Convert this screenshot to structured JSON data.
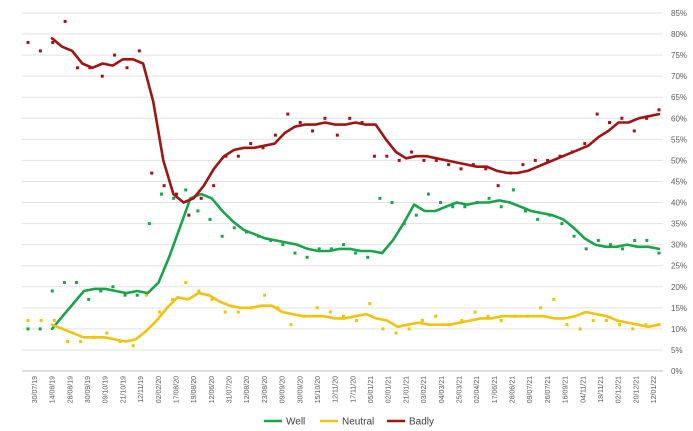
{
  "chart_data": {
    "type": "line",
    "title": "",
    "xlabel": "",
    "ylabel": "",
    "ylim": [
      0,
      85
    ],
    "y_ticks": [
      0,
      5,
      10,
      15,
      20,
      25,
      30,
      35,
      40,
      45,
      50,
      55,
      60,
      65,
      70,
      75,
      80,
      85
    ],
    "y_tick_labels": [
      "0%",
      "5%",
      "10%",
      "15%",
      "20%",
      "25%",
      "30%",
      "35%",
      "40%",
      "45%",
      "50%",
      "55%",
      "60%",
      "65%",
      "70%",
      "75%",
      "80%",
      "85%"
    ],
    "y_axis_position": "right",
    "grid": true,
    "legend_position": "bottom",
    "x_labels": [
      "30/07/19",
      "14/08/19",
      "28/08/19",
      "30/09/19",
      "09/10/19",
      "21/10/19",
      "12/11/19",
      "02/02/20",
      "17/08/20",
      "19/08/20",
      "12/06/20",
      "31/07/20",
      "12/08/20",
      "23/08/20",
      "09/09/20",
      "30/09/20",
      "15/10/20",
      "12/11/20",
      "17/11/20",
      "05/01/21",
      "02/01/21",
      "21/01/21",
      "03/02/21",
      "04/03/21",
      "25/03/21",
      "02/04/21",
      "17/06/21",
      "28/06/21",
      "09/07/21",
      "26/07/21",
      "16/09/21",
      "04/11/21",
      "18/11/21",
      "02/12/21",
      "20/12/21",
      "12/01/22"
    ],
    "series": [
      {
        "name": "Well",
        "color": "#1aa34a",
        "trend": [
          10,
          13,
          16,
          19,
          19.5,
          19.5,
          19,
          18.5,
          19,
          18.5,
          21,
          27,
          34,
          41,
          42,
          41,
          38,
          35.5,
          33.5,
          32.5,
          31.5,
          31,
          30.5,
          30,
          29,
          28.5,
          28.5,
          29,
          29,
          28.5,
          28.5,
          28,
          31,
          35,
          39.5,
          38,
          38,
          39,
          40,
          39.5,
          40,
          40,
          40.5,
          40,
          39,
          38,
          37.5,
          37,
          36,
          34,
          31.5,
          30,
          29.5,
          29.5,
          30,
          29.5,
          29.5,
          29
        ],
        "dots": [
          10,
          10,
          19,
          21,
          21,
          17,
          19,
          20,
          18,
          18,
          35,
          42,
          41,
          43,
          38,
          36,
          32,
          34,
          33,
          32,
          31,
          30,
          28,
          27,
          29,
          29,
          30,
          28,
          27,
          41,
          40,
          35,
          37,
          42,
          40,
          39,
          39,
          40,
          41,
          39,
          43,
          38,
          36,
          37,
          35,
          32,
          29,
          31,
          30,
          29,
          31,
          31,
          28
        ]
      },
      {
        "name": "Neutral",
        "color": "#f2c20c",
        "trend": [
          11,
          10,
          9,
          8,
          8,
          8,
          7.5,
          7,
          7.5,
          9.5,
          12,
          15,
          17.5,
          17,
          18.5,
          18,
          16.5,
          15.5,
          15,
          15,
          15.5,
          15.5,
          14,
          13.5,
          13,
          13,
          13,
          12.5,
          12.5,
          13,
          13.5,
          12.5,
          12,
          10.5,
          11,
          11.5,
          11,
          11,
          11,
          11.5,
          12,
          12.5,
          12.5,
          13,
          13,
          13,
          13,
          13,
          12.5,
          12.5,
          13,
          14,
          13.5,
          13,
          12,
          11.5,
          11,
          10.5,
          11
        ],
        "dots": [
          12,
          12,
          12,
          7,
          7,
          8,
          9,
          7,
          6,
          18,
          14,
          17,
          21,
          19,
          17,
          14,
          14,
          15,
          18,
          15,
          11,
          13,
          15,
          14,
          13,
          12,
          16,
          10,
          9,
          10,
          12,
          13,
          11,
          12,
          14,
          13,
          12,
          13,
          13,
          15,
          17,
          11,
          10,
          12,
          12,
          11,
          10,
          11,
          11
        ]
      },
      {
        "name": "Badly",
        "color": "#a01414",
        "trend": [
          79,
          77,
          76,
          73,
          72,
          73,
          72.5,
          74,
          74,
          73,
          64,
          50,
          42,
          40,
          41,
          44,
          48,
          51,
          52.5,
          53,
          53,
          53.5,
          54,
          56.5,
          58,
          58.5,
          58.5,
          59,
          58.5,
          58.5,
          59,
          58.5,
          58.5,
          55,
          52,
          50.5,
          51,
          51,
          50.5,
          50,
          49.5,
          49,
          48.5,
          48.5,
          47.5,
          47,
          47,
          47.5,
          48.5,
          49.5,
          50.5,
          51.5,
          52.5,
          53.5,
          55.5,
          57,
          59,
          59,
          60,
          60.5,
          61
        ],
        "dots": [
          78,
          76,
          78,
          83,
          72,
          72,
          70,
          75,
          72,
          76,
          47,
          44,
          42,
          37,
          41,
          44,
          51,
          51,
          54,
          53,
          56,
          61,
          59,
          57,
          60,
          56,
          60,
          59,
          51,
          51,
          50,
          52,
          50,
          50,
          49,
          48,
          49,
          48,
          44,
          47,
          49,
          50,
          50,
          51,
          52,
          54,
          61,
          59,
          60,
          57,
          60,
          62
        ]
      }
    ]
  }
}
